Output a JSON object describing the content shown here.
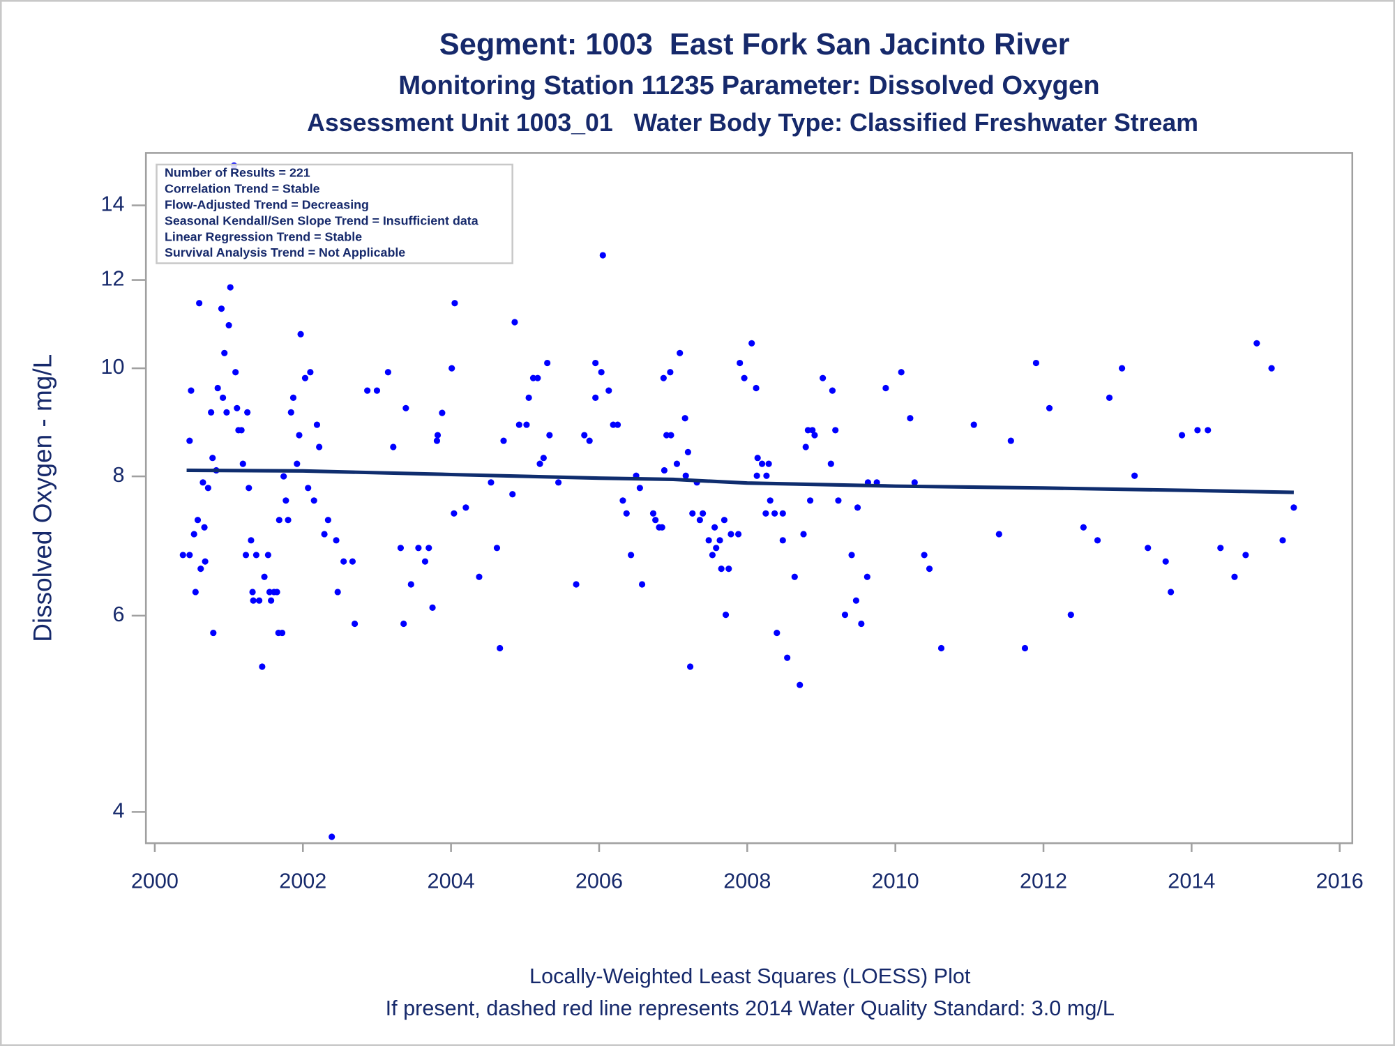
{
  "chart_data": {
    "type": "scatter",
    "title": "Segment: 1003  East Fork San Jacinto River",
    "subtitle": "Monitoring Station 11235 Parameter: Dissolved Oxygen",
    "subtitle_2": "Assessment Unit 1003_01   Water Body Type: Classified Freshwater Stream",
    "ylabel": "Dissolved Oxygen - mg/L",
    "annotations": [
      "Number of Results = 221",
      "Correlation Trend = Stable",
      "Flow-Adjusted Trend = Decreasing",
      "Seasonal Kendall/Sen Slope Trend = Insufficient data",
      "Linear Regression Trend = Stable",
      "Survival Analysis Trend = Not Applicable"
    ],
    "footnotes": [
      "Locally-Weighted Least Squares (LOESS) Plot",
      "If present, dashed red line represents 2014 Water Quality Standard: 3.0 mg/L"
    ],
    "log_y": true,
    "grid": false,
    "xlim": [
      1999.88,
      2016.17
    ],
    "xticks": [
      2000,
      2002,
      2004,
      2006,
      2008,
      2010,
      2012,
      2014,
      2016
    ],
    "ylim": [
      3.75,
      15.6
    ],
    "yticks": [
      4,
      6,
      8,
      10,
      12,
      14
    ],
    "color": "#0000ff",
    "x": [
      2000.38,
      2000.47,
      2000.47,
      2000.49,
      2000.53,
      2000.55,
      2000.58,
      2000.6,
      2000.62,
      2000.65,
      2000.67,
      2000.68,
      2000.72,
      2000.76,
      2000.78,
      2000.79,
      2000.83,
      2000.85,
      2000.9,
      2000.92,
      2000.94,
      2000.97,
      2001.0,
      2001.02,
      2001.07,
      2001.09,
      2001.11,
      2001.13,
      2001.17,
      2001.19,
      2001.23,
      2001.25,
      2001.27,
      2001.3,
      2001.32,
      2001.33,
      2001.37,
      2001.41,
      2001.45,
      2001.48,
      2001.53,
      2001.55,
      2001.57,
      2001.61,
      2001.65,
      2001.67,
      2001.72,
      2001.68,
      2001.74,
      2001.77,
      2001.8,
      2001.84,
      2001.87,
      2001.92,
      2001.95,
      2001.97,
      2002.03,
      2002.07,
      2002.1,
      2002.15,
      2002.19,
      2002.22,
      2002.29,
      2002.34,
      2002.39,
      2002.45,
      2002.47,
      2002.55,
      2002.67,
      2002.7,
      2002.87,
      2003.0,
      2003.15,
      2003.22,
      2003.32,
      2003.36,
      2003.39,
      2003.46,
      2003.56,
      2003.65,
      2003.7,
      2003.75,
      2003.81,
      2003.82,
      2003.88,
      2004.01,
      2004.04,
      2004.05,
      2004.2,
      2004.38,
      2004.54,
      2004.62,
      2004.66,
      2004.71,
      2004.83,
      2004.86,
      2004.92,
      2005.02,
      2005.05,
      2005.11,
      2005.17,
      2005.2,
      2005.25,
      2005.3,
      2005.33,
      2005.45,
      2005.69,
      2005.8,
      2005.87,
      2005.95,
      2005.95,
      2006.03,
      2006.05,
      2006.13,
      2006.19,
      2006.25,
      2006.32,
      2006.37,
      2006.43,
      2006.5,
      2006.55,
      2006.58,
      2006.73,
      2006.76,
      2006.81,
      2006.85,
      2006.87,
      2006.88,
      2006.91,
      2006.96,
      2006.97,
      2007.05,
      2007.09,
      2007.16,
      2007.17,
      2007.2,
      2007.23,
      2007.26,
      2007.32,
      2007.36,
      2007.4,
      2007.48,
      2007.53,
      2007.56,
      2007.58,
      2007.63,
      2007.65,
      2007.69,
      2007.71,
      2007.75,
      2007.78,
      2007.88,
      2007.9,
      2007.96,
      2008.06,
      2008.12,
      2008.13,
      2008.14,
      2008.2,
      2008.25,
      2008.26,
      2008.29,
      2008.31,
      2008.37,
      2008.4,
      2008.48,
      2008.48,
      2008.54,
      2008.64,
      2008.71,
      2008.76,
      2008.79,
      2008.82,
      2008.85,
      2008.88,
      2008.91,
      2009.02,
      2009.13,
      2009.15,
      2009.19,
      2009.23,
      2009.32,
      2009.41,
      2009.47,
      2009.49,
      2009.54,
      2009.62,
      2009.63,
      2009.75,
      2009.87,
      2010.08,
      2010.2,
      2010.26,
      2010.39,
      2010.46,
      2010.62,
      2011.06,
      2011.4,
      2011.56,
      2011.75,
      2011.9,
      2012.08,
      2012.37,
      2012.54,
      2012.73,
      2012.89,
      2013.06,
      2013.23,
      2013.41,
      2013.65,
      2013.72,
      2013.87,
      2014.08,
      2014.22,
      2014.39,
      2014.58,
      2014.73,
      2014.88,
      2015.08,
      2015.23,
      2015.38
    ],
    "values": [
      6.8,
      6.8,
      8.61,
      9.55,
      7.1,
      6.3,
      7.31,
      11.44,
      6.61,
      7.9,
      7.2,
      6.71,
      7.81,
      9.13,
      8.31,
      5.79,
      8.1,
      9.6,
      11.31,
      9.41,
      10.32,
      9.13,
      10.93,
      11.82,
      15.2,
      9.92,
      9.21,
      8.8,
      8.8,
      8.21,
      6.8,
      9.13,
      7.81,
      7.01,
      6.3,
      6.19,
      6.8,
      6.19,
      5.4,
      6.5,
      6.8,
      6.3,
      6.19,
      6.3,
      6.3,
      5.79,
      5.79,
      7.31,
      8.0,
      7.61,
      7.31,
      9.13,
      9.41,
      8.21,
      8.71,
      10.73,
      9.8,
      7.81,
      9.92,
      7.61,
      8.9,
      8.5,
      7.1,
      7.31,
      3.8,
      7.01,
      6.3,
      6.71,
      6.71,
      5.9,
      9.55,
      9.55,
      9.92,
      8.5,
      6.9,
      5.9,
      9.21,
      6.4,
      6.9,
      6.71,
      6.9,
      6.1,
      8.61,
      8.71,
      9.12,
      10.0,
      7.41,
      11.44,
      7.5,
      6.5,
      7.9,
      6.9,
      5.61,
      8.61,
      7.71,
      11.0,
      8.9,
      8.9,
      9.41,
      9.8,
      9.8,
      8.21,
      8.31,
      10.11,
      8.71,
      7.9,
      6.4,
      8.71,
      8.61,
      10.11,
      9.41,
      9.92,
      12.63,
      9.55,
      8.9,
      8.9,
      7.61,
      7.41,
      6.8,
      8.01,
      7.81,
      6.4,
      7.41,
      7.31,
      7.2,
      7.2,
      9.8,
      8.1,
      8.71,
      9.92,
      8.71,
      8.21,
      10.32,
      9.02,
      8.01,
      8.41,
      5.4,
      7.41,
      7.9,
      7.31,
      7.41,
      7.01,
      6.8,
      7.2,
      6.9,
      7.01,
      6.61,
      7.31,
      6.01,
      6.61,
      7.1,
      7.1,
      10.11,
      9.8,
      10.53,
      9.6,
      8.01,
      8.31,
      8.21,
      7.41,
      8.01,
      8.21,
      7.61,
      7.41,
      5.79,
      7.41,
      7.01,
      5.5,
      6.5,
      5.2,
      7.1,
      8.5,
      8.8,
      7.61,
      8.8,
      8.71,
      9.8,
      8.21,
      9.55,
      8.8,
      7.61,
      6.01,
      6.8,
      6.19,
      7.5,
      5.9,
      6.5,
      7.9,
      7.9,
      9.6,
      9.92,
      9.02,
      7.9,
      6.8,
      6.61,
      5.61,
      8.9,
      7.1,
      8.61,
      5.61,
      10.11,
      9.21,
      6.01,
      7.2,
      7.01,
      9.41,
      10.0,
      8.01,
      6.9,
      6.71,
      6.3,
      8.71,
      8.8,
      8.8,
      6.9,
      6.5,
      6.8,
      10.53,
      10.0,
      7.01,
      7.5
    ],
    "loess": {
      "color": "#0f2d6e",
      "x": [
        2000.43,
        2002,
        2004,
        2006,
        2007,
        2008,
        2010,
        2012,
        2014,
        2015.38
      ],
      "values": [
        8.1,
        8.09,
        8.03,
        7.97,
        7.95,
        7.89,
        7.84,
        7.81,
        7.77,
        7.74
      ]
    }
  }
}
